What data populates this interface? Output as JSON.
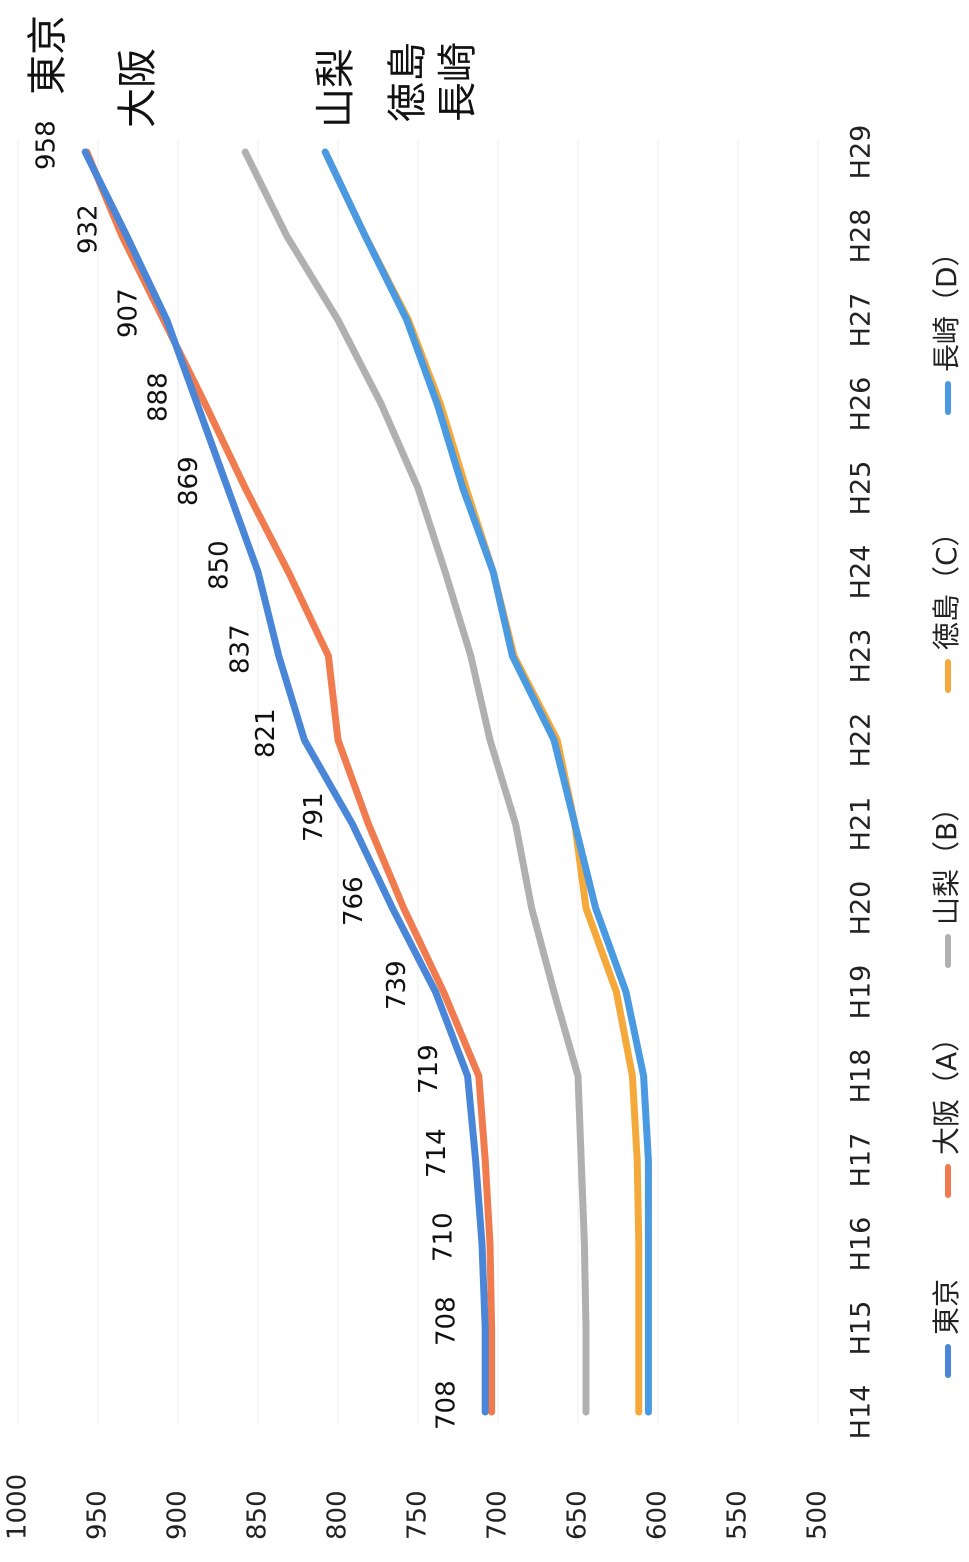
{
  "chart_data": {
    "type": "line",
    "orientation": "rotated-90-clockwise",
    "categories": [
      "H14",
      "H15",
      "H16",
      "H17",
      "H18",
      "H19",
      "H20",
      "H21",
      "H22",
      "H23",
      "H24",
      "H25",
      "H26",
      "H27",
      "H28",
      "H29"
    ],
    "ylim": [
      500,
      1000
    ],
    "yticks": [
      500,
      550,
      600,
      650,
      700,
      750,
      800,
      850,
      900,
      950,
      1000
    ],
    "grid": true,
    "legend_position": "bottom",
    "series": [
      {
        "name": "東京",
        "legend_label": "東京",
        "end_label": "東京",
        "color": "#4a86d8",
        "values": [
          708,
          708,
          710,
          714,
          719,
          739,
          766,
          791,
          821,
          837,
          850,
          869,
          888,
          907,
          932,
          958
        ],
        "data_labels": [
          "708",
          "708",
          "710",
          "714",
          "719",
          "739",
          "766",
          "791",
          "821",
          "837",
          "850",
          "869",
          "888",
          "907",
          "932",
          "958"
        ]
      },
      {
        "name": "大阪",
        "legend_label": "大阪（A）",
        "end_label": "大阪",
        "color": "#ef7b4f",
        "values": [
          704,
          704,
          705,
          708,
          712,
          734,
          759,
          781,
          800,
          806,
          831,
          858,
          883,
          909,
          935,
          957
        ]
      },
      {
        "name": "山梨",
        "legend_label": "山梨（B）",
        "end_label": "山梨",
        "color": "#b0b0b0",
        "values": [
          645,
          645,
          646,
          648,
          650,
          665,
          679,
          689,
          705,
          717,
          733,
          750,
          773,
          800,
          832,
          858
        ]
      },
      {
        "name": "徳島",
        "legend_label": "徳島（C）",
        "end_label": "徳島",
        "color": "#f4a93a",
        "values": [
          612,
          612,
          612,
          613,
          616,
          626,
          645,
          652,
          663,
          690,
          703,
          720,
          736,
          756,
          783,
          808
        ]
      },
      {
        "name": "長崎",
        "legend_label": "長崎（D）",
        "end_label": "長崎",
        "color": "#4a9ae2",
        "values": [
          606,
          606,
          606,
          606,
          609,
          620,
          639,
          652,
          665,
          691,
          703,
          722,
          738,
          757,
          783,
          808
        ]
      }
    ]
  }
}
